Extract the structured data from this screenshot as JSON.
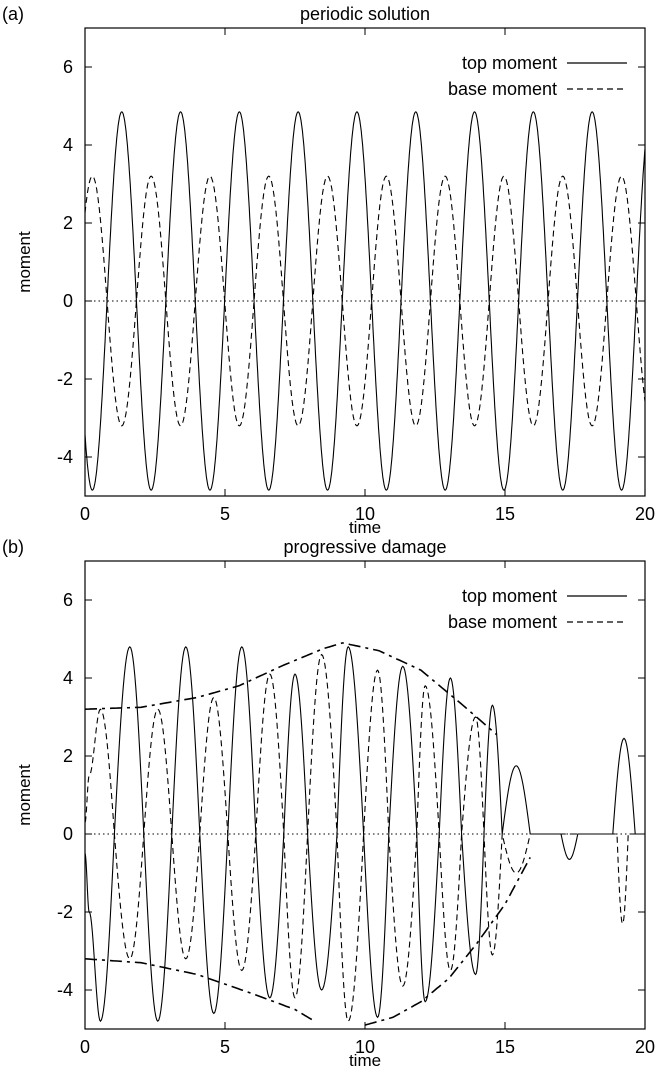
{
  "chart_data": [
    {
      "panel_label": "(a)",
      "type": "line",
      "title": "periodic solution",
      "xlabel": "time",
      "ylabel": "moment",
      "xlim": [
        0,
        20
      ],
      "ylim": [
        -5,
        7
      ],
      "xticks": [
        "0",
        "5",
        "10",
        "15",
        "20"
      ],
      "yticks": [
        "-4",
        "-2",
        "0",
        "2",
        "4",
        "6"
      ],
      "grid": false,
      "legend_position": "top-right",
      "series": [
        {
          "name": "top moment",
          "style": "solid",
          "period": 2.1,
          "amplitude": 4.85,
          "phase": -0.375,
          "peaks_x": [
            1.6,
            3.7,
            5.8,
            7.9,
            10.0,
            12.1,
            14.2,
            16.3,
            18.4
          ],
          "peaks_y": [
            4.85,
            4.85,
            4.85,
            4.85,
            4.85,
            4.85,
            4.85,
            4.85,
            4.85
          ],
          "troughs_x": [
            0.55,
            2.65,
            4.75,
            6.85,
            8.95,
            11.05,
            13.15,
            15.25,
            17.35,
            19.45
          ],
          "troughs_y": [
            -4.85,
            -4.85,
            -4.85,
            -4.85,
            -4.85,
            -4.85,
            -4.85,
            -4.85,
            -4.85,
            -4.85
          ]
        },
        {
          "name": "base moment",
          "style": "dashed",
          "period": 2.1,
          "amplitude": 3.2,
          "phase": 0.125,
          "peaks_x": [
            0.55,
            2.65,
            4.75,
            6.85,
            8.95,
            11.05,
            13.15,
            15.25,
            17.35,
            19.45
          ],
          "peaks_y": [
            3.2,
            3.2,
            3.2,
            3.2,
            3.2,
            3.2,
            3.2,
            3.2,
            3.2,
            3.2
          ],
          "troughs_x": [
            1.6,
            3.7,
            5.8,
            7.9,
            10.0,
            12.1,
            14.2,
            16.3,
            18.4
          ],
          "troughs_y": [
            -3.2,
            -3.2,
            -3.2,
            -3.2,
            -3.2,
            -3.2,
            -3.2,
            -3.2,
            -3.2
          ]
        }
      ],
      "reference_line": {
        "y": 0,
        "style": "dotted"
      }
    },
    {
      "panel_label": "(b)",
      "type": "line",
      "title": "progressive damage",
      "xlabel": "time",
      "ylabel": "moment",
      "xlim": [
        0,
        20
      ],
      "ylim": [
        -5,
        7
      ],
      "xticks": [
        "0",
        "5",
        "10",
        "15",
        "20"
      ],
      "yticks": [
        "-4",
        "-2",
        "0",
        "2",
        "4",
        "6"
      ],
      "grid": false,
      "legend_position": "top-right",
      "series": [
        {
          "name": "top moment",
          "style": "solid",
          "x": [
            0,
            0.15,
            0.55,
            1.05,
            1.6,
            2.1,
            2.6,
            3.1,
            3.6,
            4.1,
            4.6,
            5.1,
            5.6,
            6.1,
            6.6,
            7.1,
            7.5,
            7.95,
            8.45,
            9.0,
            9.4,
            9.95,
            10.45,
            10.85,
            11.35,
            11.85,
            12.15,
            12.65,
            13.05,
            13.45,
            13.95,
            14.25,
            14.55,
            14.9,
            15.4,
            15.9,
            16.1,
            17.0,
            17.3,
            17.6,
            17.9,
            18.6,
            18.85,
            19.25,
            19.65,
            20.0
          ],
          "y": [
            -0.5,
            -2.0,
            -4.8,
            0,
            4.8,
            0,
            -4.8,
            0,
            4.8,
            0,
            -4.6,
            0,
            4.8,
            0,
            -4.2,
            0,
            4.1,
            0,
            -4.0,
            0,
            4.8,
            0,
            -4.7,
            0,
            4.3,
            0,
            -4.3,
            0,
            4.0,
            0,
            -3.6,
            0,
            3.3,
            0,
            1.75,
            0,
            0,
            0,
            -0.65,
            0,
            0,
            0,
            0,
            2.45,
            0,
            0
          ]
        },
        {
          "name": "base moment",
          "style": "dashed",
          "x": [
            0,
            0.15,
            0.55,
            1.05,
            1.6,
            2.1,
            2.6,
            3.1,
            3.6,
            4.1,
            4.6,
            5.1,
            5.6,
            6.1,
            6.6,
            7.1,
            7.5,
            7.95,
            8.45,
            9.0,
            9.4,
            9.95,
            10.45,
            10.85,
            11.35,
            11.85,
            12.15,
            12.65,
            13.05,
            13.45,
            13.95,
            14.25,
            14.55,
            14.9,
            15.4,
            15.9,
            16.1,
            19.0,
            19.2,
            19.4,
            20.0
          ],
          "y": [
            0.3,
            1.5,
            3.2,
            0,
            -3.2,
            0,
            3.2,
            0,
            -3.2,
            0,
            3.5,
            0,
            -3.5,
            0,
            4.1,
            0,
            -4.2,
            0,
            4.6,
            0,
            -4.8,
            0,
            4.2,
            0,
            -3.9,
            0,
            3.8,
            0,
            -3.5,
            0,
            3.0,
            0,
            -3.1,
            0,
            -1.0,
            0,
            0,
            0,
            -2.3,
            0,
            0
          ]
        },
        {
          "name": "",
          "style": "dash-dot",
          "x": [
            0,
            2,
            4,
            5.5,
            7,
            8.5,
            9.2,
            10.5,
            12,
            13.5,
            14.7
          ],
          "y": [
            3.2,
            3.25,
            3.5,
            3.8,
            4.3,
            4.75,
            4.9,
            4.7,
            4.2,
            3.3,
            2.55
          ]
        },
        {
          "name": "",
          "style": "dash-dot",
          "x": [
            0,
            2,
            4,
            6,
            7.5,
            8.2
          ],
          "y": [
            -3.2,
            -3.3,
            -3.6,
            -4.1,
            -4.5,
            -4.8
          ]
        },
        {
          "name": "",
          "style": "dash-dot",
          "x": [
            10.0,
            11,
            12,
            13,
            14,
            15,
            15.9
          ],
          "y": [
            -4.9,
            -4.7,
            -4.3,
            -3.7,
            -2.8,
            -1.8,
            -0.6
          ]
        }
      ],
      "reference_line": {
        "y": 0,
        "style": "dotted"
      }
    }
  ]
}
